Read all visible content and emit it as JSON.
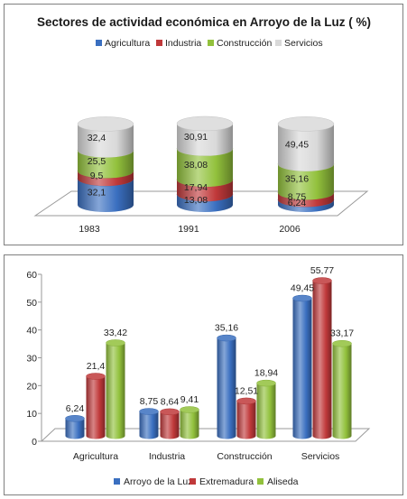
{
  "colors": {
    "blue": "#3a6fc0",
    "red": "#c0393a",
    "green": "#92c13c",
    "grey": "#d9d9d9"
  },
  "chart_data": [
    {
      "type": "bar",
      "stacked": true,
      "title": "Sectores de actividad económica en Arroyo de la Luz ( %)",
      "categories": [
        "1983",
        "1991",
        "2006"
      ],
      "series": [
        {
          "name": "Agricultura",
          "values": [
            32.1,
            13.08,
            6.24
          ],
          "labels": [
            "32,1",
            "13,08",
            "6,24"
          ],
          "color": "#3a6fc0"
        },
        {
          "name": "Industria",
          "values": [
            9.5,
            17.94,
            8.75
          ],
          "labels": [
            "9,5",
            "17,94",
            "8,75"
          ],
          "color": "#c0393a"
        },
        {
          "name": "Construcción",
          "values": [
            25.5,
            38.08,
            35.16
          ],
          "labels": [
            "25,5",
            "38,08",
            "35,16"
          ],
          "color": "#92c13c"
        },
        {
          "name": "Servicios",
          "values": [
            32.4,
            30.91,
            49.45
          ],
          "labels": [
            "32,4",
            "30,91",
            "49,45"
          ],
          "color": "#d9d9d9"
        }
      ],
      "legend_position": "top"
    },
    {
      "type": "bar",
      "categories": [
        "Agricultura",
        "Industria",
        "Construcción",
        "Servicios"
      ],
      "series": [
        {
          "name": "Arroyo de la Luz",
          "values": [
            6.24,
            8.75,
            35.16,
            49.45
          ],
          "labels": [
            "6,24",
            "8,75",
            "35,16",
            "49,45"
          ],
          "color": "#3a6fc0"
        },
        {
          "name": "Extremadura",
          "values": [
            21.4,
            8.64,
            12.51,
            55.77
          ],
          "labels": [
            "21,4",
            "8,64",
            "12,51",
            "55,77"
          ],
          "color": "#c0393a"
        },
        {
          "name": "Aliseda",
          "values": [
            33.42,
            9.41,
            18.94,
            33.17
          ],
          "labels": [
            "33,42",
            "9,41",
            "18,94",
            "33,17"
          ],
          "color": "#92c13c"
        }
      ],
      "ylim": [
        0,
        60
      ],
      "yticks": [
        "0",
        "10",
        "20",
        "30",
        "40",
        "50",
        "60"
      ],
      "legend_position": "bottom"
    }
  ]
}
